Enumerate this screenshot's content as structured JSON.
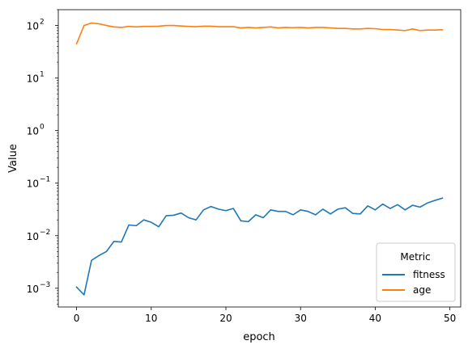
{
  "chart_data": {
    "type": "line",
    "title": "",
    "xlabel": "epoch",
    "ylabel": "Value",
    "yscale": "log",
    "xlim": [
      -2.45,
      51.45
    ],
    "ylim": [
      0.00044,
      200
    ],
    "x_ticks": [
      0,
      10,
      20,
      30,
      40,
      50
    ],
    "y_ticks": [
      0.001,
      0.01,
      0.1,
      1,
      10,
      100
    ],
    "y_tick_labels": [
      "10",
      "10",
      "10",
      "10",
      "10",
      "10"
    ],
    "y_tick_exponents": [
      "−3",
      "−2",
      "−1",
      "0",
      "1",
      "2"
    ],
    "legend": {
      "title": "Metric",
      "placement": "lower-right"
    },
    "grid": false,
    "x": [
      0,
      1,
      2,
      3,
      4,
      5,
      6,
      7,
      8,
      9,
      10,
      11,
      12,
      13,
      14,
      15,
      16,
      17,
      18,
      19,
      20,
      21,
      22,
      23,
      24,
      25,
      26,
      27,
      28,
      29,
      30,
      31,
      32,
      33,
      34,
      35,
      36,
      37,
      38,
      39,
      40,
      41,
      42,
      43,
      44,
      45,
      46,
      47,
      48,
      49
    ],
    "series": [
      {
        "name": "fitness",
        "color": "#1f77b4",
        "values": [
          0.00105,
          0.00075,
          0.0034,
          0.0042,
          0.005,
          0.0078,
          0.0076,
          0.016,
          0.0155,
          0.02,
          0.018,
          0.0148,
          0.024,
          0.0245,
          0.027,
          0.022,
          0.02,
          0.031,
          0.036,
          0.032,
          0.03,
          0.033,
          0.0192,
          0.0185,
          0.025,
          0.022,
          0.031,
          0.029,
          0.029,
          0.025,
          0.031,
          0.029,
          0.025,
          0.032,
          0.026,
          0.032,
          0.034,
          0.0265,
          0.026,
          0.037,
          0.031,
          0.04,
          0.033,
          0.039,
          0.031,
          0.038,
          0.035,
          0.042,
          0.047,
          0.052
        ]
      },
      {
        "name": "age",
        "color": "#ff7f0e",
        "values": [
          45,
          100,
          112,
          108,
          100,
          94,
          92,
          96,
          94,
          96,
          96,
          97,
          100,
          100,
          98,
          96,
          95,
          97,
          97,
          95,
          95,
          95,
          90,
          92,
          90,
          92,
          94,
          90,
          92,
          91,
          92,
          90,
          92,
          92,
          90,
          88,
          88,
          86,
          86,
          88,
          87,
          84,
          84,
          82,
          80,
          86,
          80,
          82,
          82,
          83
        ]
      }
    ]
  }
}
